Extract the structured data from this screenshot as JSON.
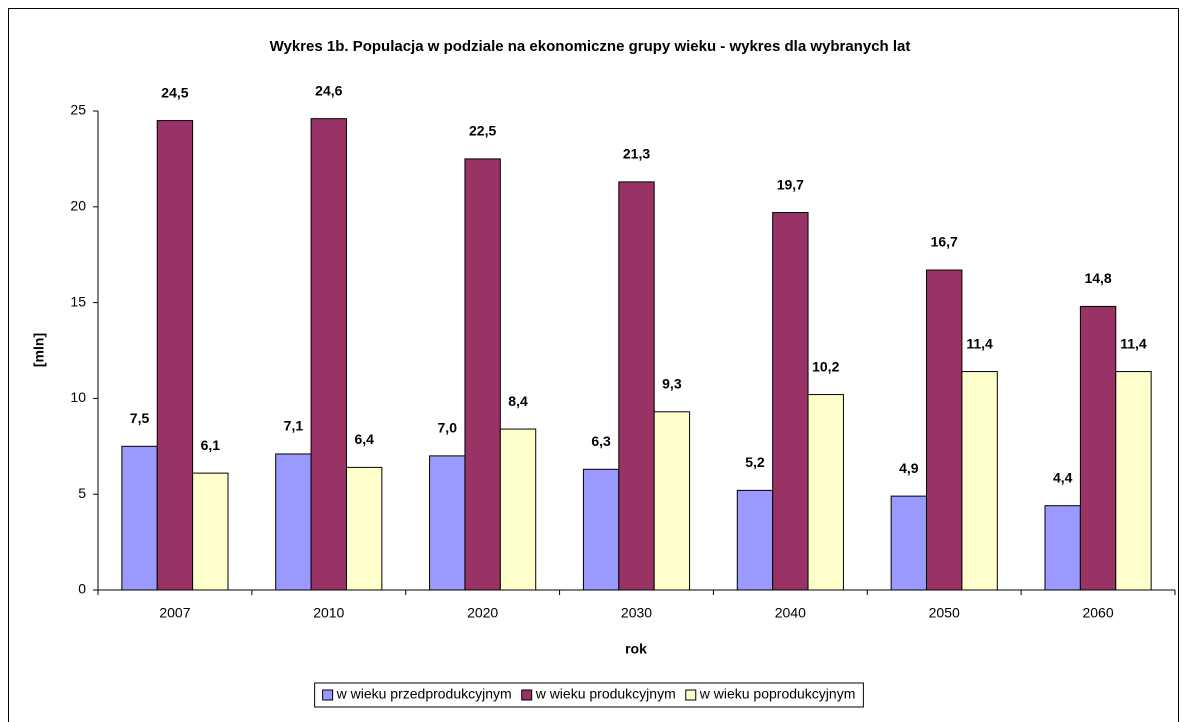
{
  "chart_data": {
    "type": "bar",
    "title": "Wykres 1b. Populacja w podziale na ekonomiczne grupy wieku - wykres dla wybranych lat",
    "x_label": "rok",
    "y_label": "[mln]",
    "categories": [
      "2007",
      "2010",
      "2020",
      "2030",
      "2040",
      "2050",
      "2060"
    ],
    "series": [
      {
        "name": "w wieku przedprodukcyjnym",
        "color": "#9999ff",
        "values": [
          7.5,
          7.1,
          7.0,
          6.3,
          5.2,
          4.9,
          4.4
        ],
        "value_labels": [
          "7,5",
          "7,1",
          "7,0",
          "6,3",
          "5,2",
          "4,9",
          "4,4"
        ]
      },
      {
        "name": "w wieku produkcyjnym",
        "color": "#993366",
        "values": [
          24.5,
          24.6,
          22.5,
          21.3,
          19.7,
          16.7,
          14.8
        ],
        "value_labels": [
          "24,5",
          "24,6",
          "22,5",
          "21,3",
          "19,7",
          "16,7",
          "14,8"
        ]
      },
      {
        "name": "w wieku poprodukcyjnym",
        "color": "#ffffcc",
        "values": [
          6.1,
          6.4,
          8.4,
          9.3,
          10.2,
          11.4,
          11.4
        ],
        "value_labels": [
          "6,1",
          "6,4",
          "8,4",
          "9,3",
          "10,2",
          "11,4",
          "11,4"
        ]
      }
    ],
    "ylim": [
      0,
      25
    ],
    "yticks": [
      0,
      5,
      10,
      15,
      20,
      25
    ],
    "legend": "bottom"
  }
}
